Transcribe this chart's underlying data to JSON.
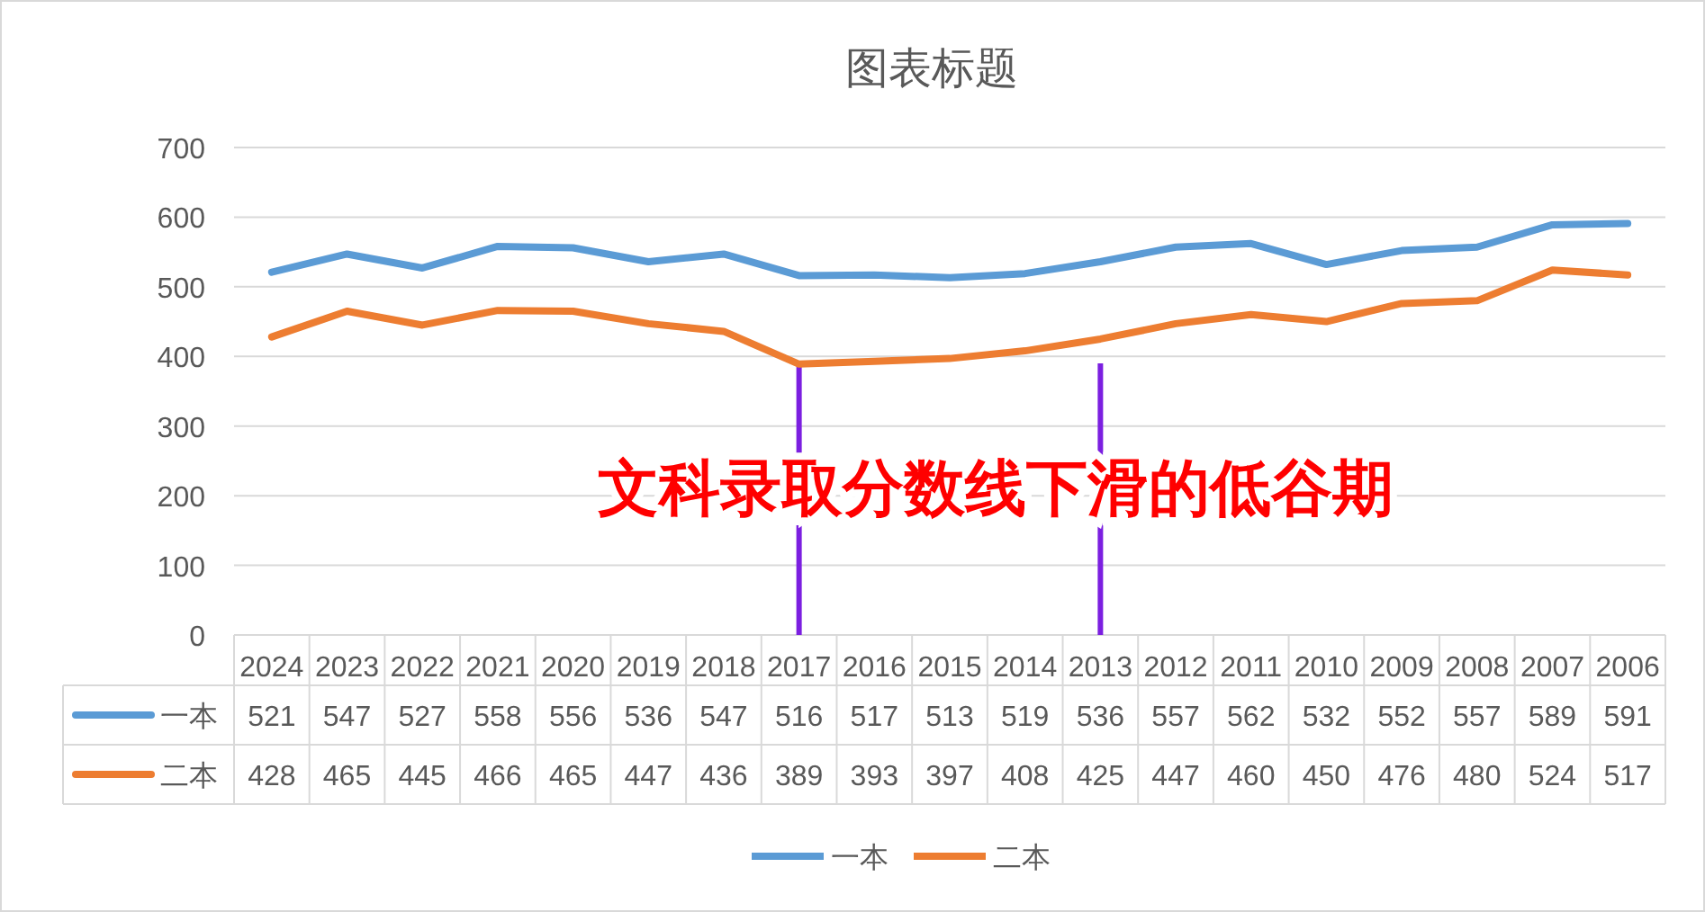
{
  "chart_data": {
    "type": "line",
    "title": "图表标题",
    "categories": [
      "2024",
      "2023",
      "2022",
      "2021",
      "2020",
      "2019",
      "2018",
      "2017",
      "2016",
      "2015",
      "2014",
      "2013",
      "2012",
      "2011",
      "2010",
      "2009",
      "2008",
      "2007",
      "2006"
    ],
    "series": [
      {
        "name": "一本",
        "color": "#5b9bd5",
        "values": [
          521,
          547,
          527,
          558,
          556,
          536,
          547,
          516,
          517,
          513,
          519,
          536,
          557,
          562,
          532,
          552,
          557,
          589,
          591
        ]
      },
      {
        "name": "二本",
        "color": "#ed7d31",
        "values": [
          428,
          465,
          445,
          466,
          465,
          447,
          436,
          389,
          393,
          397,
          408,
          425,
          447,
          460,
          450,
          476,
          480,
          524,
          517
        ]
      }
    ],
    "ylim": [
      0,
      700
    ],
    "yticks": [
      0,
      100,
      200,
      300,
      400,
      500,
      600,
      700
    ],
    "grid": "y",
    "legend": "bottom",
    "data_labels": true,
    "marker": "none",
    "line_style": "solid",
    "ref_lines": [
      {
        "axis": "x",
        "value": "2017",
        "color": "#7b1fe0"
      },
      {
        "axis": "x",
        "value": "2013",
        "color": "#7b1fe0"
      }
    ],
    "annotations": [
      "文科录取分数线下滑的低谷期"
    ]
  }
}
